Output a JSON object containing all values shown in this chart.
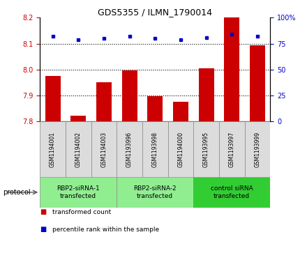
{
  "title": "GDS5355 / ILMN_1790014",
  "samples": [
    "GSM1194001",
    "GSM1194002",
    "GSM1194003",
    "GSM1193996",
    "GSM1193998",
    "GSM1194000",
    "GSM1193995",
    "GSM1193997",
    "GSM1193999"
  ],
  "red_values": [
    7.975,
    7.822,
    7.952,
    7.998,
    7.898,
    7.876,
    8.005,
    8.2,
    8.093
  ],
  "blue_values": [
    82,
    79,
    80,
    82,
    80,
    79,
    81,
    84,
    82
  ],
  "ylim_left": [
    7.8,
    8.2
  ],
  "ylim_right": [
    0,
    100
  ],
  "yticks_left": [
    7.8,
    7.9,
    8.0,
    8.1,
    8.2
  ],
  "yticks_right": [
    0,
    25,
    50,
    75,
    100
  ],
  "dotted_lines": [
    7.9,
    8.0,
    8.1
  ],
  "groups": [
    {
      "label": "RBP2-siRNA-1\ntransfected",
      "start": 0,
      "end": 3,
      "color": "#90EE90"
    },
    {
      "label": "RBP2-siRNA-2\ntransfected",
      "start": 3,
      "end": 6,
      "color": "#90EE90"
    },
    {
      "label": "control siRNA\ntransfected",
      "start": 6,
      "end": 9,
      "color": "#32CD32"
    }
  ],
  "bar_color": "#CC0000",
  "dot_color": "#0000CC",
  "sample_bg": "#DCDCDC",
  "bar_width": 0.6,
  "legend_red": "transformed count",
  "legend_blue": "percentile rank within the sample",
  "protocol_label": "protocol"
}
